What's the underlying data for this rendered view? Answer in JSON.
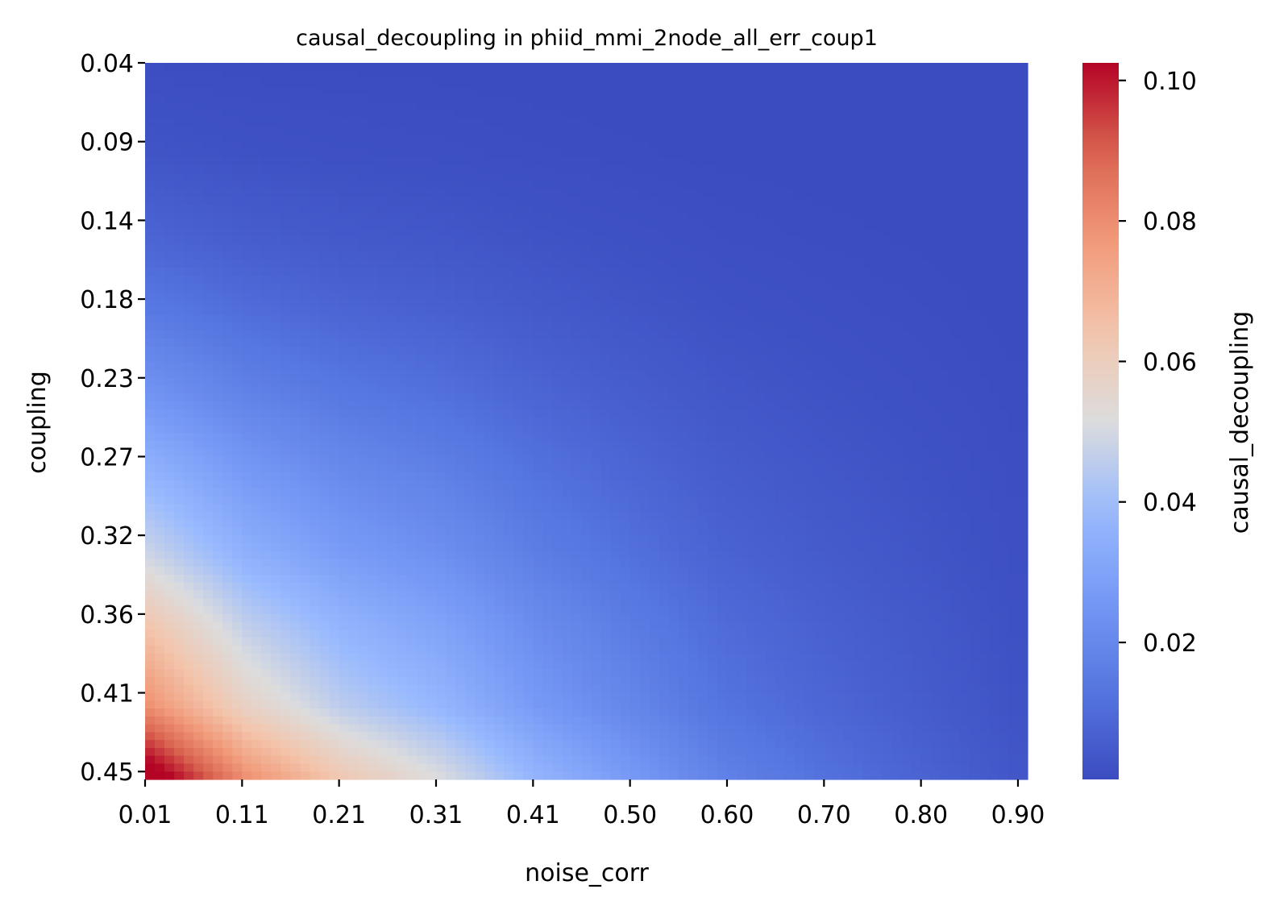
{
  "chart_data": {
    "type": "heatmap",
    "title": "causal_decoupling in phiid_mmi_2node_all_err_coup1",
    "xlabel": "noise_corr",
    "ylabel": "coupling",
    "x_tick_labels": [
      "0.01",
      "0.11",
      "0.21",
      "0.31",
      "0.41",
      "0.50",
      "0.60",
      "0.70",
      "0.80",
      "0.90"
    ],
    "y_tick_labels": [
      "0.04",
      "0.09",
      "0.14",
      "0.18",
      "0.23",
      "0.27",
      "0.32",
      "0.36",
      "0.41",
      "0.45"
    ],
    "x_range": [
      0.01,
      0.91
    ],
    "y_range": [
      0.04,
      0.45
    ],
    "grid_size": [
      91,
      91
    ],
    "colormap": "coolwarm",
    "colorbar": {
      "label": "causal_decoupling",
      "range": [
        0.0005,
        0.1025
      ],
      "tick_values": [
        0.02,
        0.04,
        0.06,
        0.08,
        0.1
      ],
      "tick_labels": [
        "0.02",
        "0.04",
        "0.06",
        "0.08",
        "0.10"
      ]
    },
    "value_samples": [
      {
        "noise_corr": 0.01,
        "coupling": 0.45,
        "causal_decoupling": 0.102
      },
      {
        "noise_corr": 0.11,
        "coupling": 0.45,
        "causal_decoupling": 0.074
      },
      {
        "noise_corr": 0.21,
        "coupling": 0.45,
        "causal_decoupling": 0.058
      },
      {
        "noise_corr": 0.31,
        "coupling": 0.45,
        "causal_decoupling": 0.048
      },
      {
        "noise_corr": 0.41,
        "coupling": 0.45,
        "causal_decoupling": 0.034
      },
      {
        "noise_corr": 0.5,
        "coupling": 0.45,
        "causal_decoupling": 0.025
      },
      {
        "noise_corr": 0.6,
        "coupling": 0.45,
        "causal_decoupling": 0.016
      },
      {
        "noise_corr": 0.7,
        "coupling": 0.45,
        "causal_decoupling": 0.011
      },
      {
        "noise_corr": 0.8,
        "coupling": 0.45,
        "causal_decoupling": 0.007
      },
      {
        "noise_corr": 0.9,
        "coupling": 0.45,
        "causal_decoupling": 0.003
      },
      {
        "noise_corr": 0.01,
        "coupling": 0.41,
        "causal_decoupling": 0.075
      },
      {
        "noise_corr": 0.01,
        "coupling": 0.36,
        "causal_decoupling": 0.06
      },
      {
        "noise_corr": 0.01,
        "coupling": 0.32,
        "causal_decoupling": 0.046
      },
      {
        "noise_corr": 0.01,
        "coupling": 0.27,
        "causal_decoupling": 0.034
      },
      {
        "noise_corr": 0.01,
        "coupling": 0.23,
        "causal_decoupling": 0.024
      },
      {
        "noise_corr": 0.01,
        "coupling": 0.18,
        "causal_decoupling": 0.014
      },
      {
        "noise_corr": 0.01,
        "coupling": 0.14,
        "causal_decoupling": 0.008
      },
      {
        "noise_corr": 0.01,
        "coupling": 0.09,
        "causal_decoupling": 0.003
      },
      {
        "noise_corr": 0.01,
        "coupling": 0.04,
        "causal_decoupling": 0.001
      },
      {
        "noise_corr": 0.9,
        "coupling": 0.04,
        "causal_decoupling": 0.0005
      }
    ]
  }
}
